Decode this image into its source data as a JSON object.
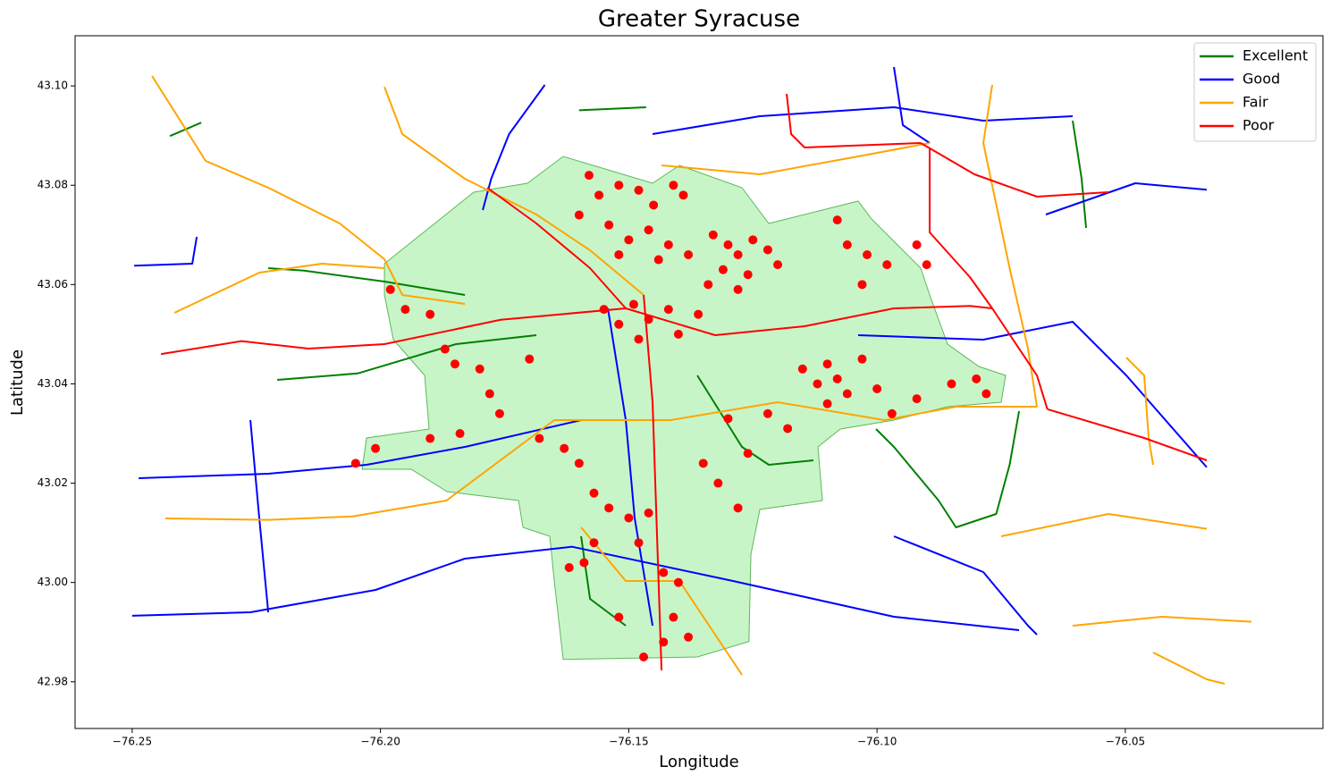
{
  "chart_data": {
    "type": "map",
    "title": "Greater Syracuse",
    "x_label": "Longitude",
    "y_label": "Latitude",
    "xlim": [
      -76.2615,
      -76.0102
    ],
    "ylim": [
      42.9706,
      43.1101
    ],
    "xticks": [
      {
        "value": -76.25,
        "label": "−76.25"
      },
      {
        "value": -76.2,
        "label": "−76.20"
      },
      {
        "value": -76.15,
        "label": "−76.15"
      },
      {
        "value": -76.1,
        "label": "−76.10"
      },
      {
        "value": -76.05,
        "label": "−76.05"
      }
    ],
    "yticks": [
      42.98,
      {
        "value": 43,
        "label": "43.00"
      },
      43.02,
      43.04,
      43.06,
      43.08,
      {
        "value": 43.1,
        "label": "43.10"
      }
    ],
    "legend": "upper right",
    "boundary": {
      "fill": "#c8f5c8",
      "edge": "#5cb85c",
      "x": [
        -76.1992,
        -76.1902,
        -76.1812,
        -76.1704,
        -76.1632,
        -76.1542,
        -76.1452,
        -76.1398,
        -76.1272,
        -76.1218,
        -76.1038,
        -76.1011,
        -76.0966,
        -76.0912,
        -76.0894,
        -76.0858,
        -76.0795,
        -76.0741,
        -76.075,
        -76.0858,
        -76.0966,
        -76.1074,
        -76.1119,
        -76.111,
        -76.1236,
        -76.1254,
        -76.1258,
        -76.1362,
        -76.1632,
        -76.165,
        -76.1659,
        -76.1713,
        -76.1722,
        -76.1866,
        -76.1938,
        -76.2037,
        -76.2028,
        -76.1902,
        -76.1911,
        -76.1974,
        -76.1992
      ],
      "y": [
        43.0642,
        43.0714,
        43.0786,
        43.0804,
        43.0858,
        43.0831,
        43.0804,
        43.084,
        43.0795,
        43.0723,
        43.0768,
        43.0732,
        43.0687,
        43.0633,
        43.0579,
        43.048,
        43.0435,
        43.0417,
        43.0363,
        43.0354,
        43.0327,
        43.0309,
        43.0273,
        43.0165,
        43.0147,
        43.0057,
        42.9881,
        42.985,
        42.9845,
        43.0003,
        43.0093,
        43.0111,
        43.0165,
        43.0183,
        43.0228,
        43.0228,
        43.0291,
        43.0309,
        43.0417,
        43.0489,
        43.0579
      ]
    },
    "series": [
      {
        "name": "Excellent",
        "color": "#008000",
        "lines": [
          {
            "x": [
              -76.2424,
              -76.2361
            ],
            "y": [
              43.0899,
              43.0926
            ]
          },
          {
            "x": [
              -76.2208,
              -76.2046,
              -76.1848,
              -76.1686
            ],
            "y": [
              43.0408,
              43.0421,
              43.048,
              43.0498
            ]
          },
          {
            "x": [
              -76.2226,
              -76.2154,
              -76.1992,
              -76.183
            ],
            "y": [
              43.0633,
              43.0628,
              43.0606,
              43.0579
            ]
          },
          {
            "x": [
              -76.16,
              -76.1465
            ],
            "y": [
              43.0951,
              43.0957
            ]
          },
          {
            "x": [
              -76.0606,
              -76.0588,
              -76.0579
            ],
            "y": [
              43.093,
              43.0813,
              43.0714
            ]
          },
          {
            "x": [
              -76.1002,
              -76.0966,
              -76.0876,
              -76.0841,
              -76.076,
              -76.0733,
              -76.0714
            ],
            "y": [
              43.0309,
              43.0273,
              43.0165,
              43.0111,
              43.0138,
              43.0237,
              43.0345
            ]
          },
          {
            "x": [
              -76.1362,
              -76.1272,
              -76.1218,
              -76.1128
            ],
            "y": [
              43.0417,
              43.0273,
              43.0237,
              43.0246
            ]
          },
          {
            "x": [
              -76.1596,
              -76.1578,
              -76.1506
            ],
            "y": [
              43.0093,
              42.9967,
              42.9913
            ]
          }
        ]
      },
      {
        "name": "Good",
        "color": "#0000ff",
        "lines": [
          {
            "x": [
              -76.25,
              -76.2262,
              -76.201,
              -76.183,
              -76.1614,
              -76.129,
              -76.0966,
              -76.0714
            ],
            "y": [
              42.9933,
              42.994,
              42.9985,
              43.0048,
              43.0072,
              43.0003,
              42.9931,
              42.9904
            ]
          },
          {
            "x": [
              -76.2496,
              -76.2379,
              -76.237
            ],
            "y": [
              43.0638,
              43.0642,
              43.0696
            ]
          },
          {
            "x": [
              -76.2487,
              -76.2226,
              -76.2028,
              -76.183,
              -76.1596
            ],
            "y": [
              43.021,
              43.0219,
              43.0237,
              43.0273,
              43.0327
            ]
          },
          {
            "x": [
              -76.1038,
              -76.0786,
              -76.0606,
              -76.0498,
              -76.0336
            ],
            "y": [
              43.0498,
              43.0489,
              43.0525,
              43.0417,
              43.0232
            ]
          },
          {
            "x": [
              -76.1452,
              -76.1236,
              -76.0966,
              -76.0786,
              -76.0606
            ],
            "y": [
              43.0903,
              43.0939,
              43.0957,
              43.093,
              43.0939
            ]
          },
          {
            "x": [
              -76.066,
              -76.048,
              -76.0336
            ],
            "y": [
              43.0741,
              43.0804,
              43.0791
            ]
          },
          {
            "x": [
              -76.1669,
              -76.1741,
              -76.1777,
              -76.1794
            ],
            "y": [
              43.1002,
              43.0903,
              43.0813,
              43.075
            ]
          },
          {
            "x": [
              -76.0966,
              -76.0948,
              -76.0894
            ],
            "y": [
              43.1038,
              43.0921,
              43.0885
            ]
          },
          {
            "x": [
              -76.0966,
              -76.0786,
              -76.0696,
              -76.0678
            ],
            "y": [
              43.0093,
              43.0021,
              42.9913,
              42.9895
            ]
          },
          {
            "x": [
              -76.2262,
              -76.2244,
              -76.2226
            ],
            "y": [
              43.0327,
              43.0129,
              42.994
            ]
          },
          {
            "x": [
              -76.1542,
              -76.1506,
              -76.1488,
              -76.1452
            ],
            "y": [
              43.0552,
              43.0327,
              43.0129,
              42.9913
            ]
          }
        ]
      },
      {
        "name": "Fair",
        "color": "#ffa500",
        "lines": [
          {
            "x": [
              -76.246,
              -76.2352,
              -76.2226,
              -76.2082,
              -76.1992,
              -76.1956,
              -76.183
            ],
            "y": [
              43.102,
              43.0849,
              43.0795,
              43.0723,
              43.0651,
              43.0579,
              43.0561
            ]
          },
          {
            "x": [
              -76.2433,
              -76.2226,
              -76.2056,
              -76.1867,
              -76.165,
              -76.1416,
              -76.12,
              -76.0985,
              -76.0841,
              -76.0678
            ],
            "y": [
              43.0129,
              43.0126,
              43.0133,
              43.0165,
              43.0327,
              43.0327,
              43.0363,
              43.0327,
              43.0354,
              43.0354
            ]
          },
          {
            "x": [
              -76.1992,
              -76.1956,
              -76.183,
              -76.1686,
              -76.1578,
              -76.147
            ],
            "y": [
              43.0998,
              43.0903,
              43.0813,
              43.0741,
              43.0669,
              43.0579
            ]
          },
          {
            "x": [
              -76.0768,
              -76.0786,
              -76.0733,
              -76.0696,
              -76.0678
            ],
            "y": [
              43.1002,
              43.0885,
              43.0633,
              43.0471,
              43.0354
            ]
          },
          {
            "x": [
              -76.0498,
              -76.0462,
              -76.0453,
              -76.0444
            ],
            "y": [
              43.0453,
              43.0417,
              43.0291,
              43.0237
            ]
          },
          {
            "x": [
              -76.075,
              -76.0534,
              -76.0336
            ],
            "y": [
              43.0093,
              43.0138,
              43.0108
            ]
          },
          {
            "x": [
              -76.0606,
              -76.0426,
              -76.0246
            ],
            "y": [
              42.9913,
              42.9931,
              42.9921
            ]
          },
          {
            "x": [
              -76.0444,
              -76.0336,
              -76.03
            ],
            "y": [
              42.9859,
              42.9805,
              42.9796
            ]
          },
          {
            "x": [
              -76.1596,
              -76.1506,
              -76.1398,
              -76.1272
            ],
            "y": [
              43.0111,
              43.0003,
              43.0003,
              42.9814
            ]
          },
          {
            "x": [
              -76.1434,
              -76.1236,
              -76.1038,
              -76.0894
            ],
            "y": [
              43.084,
              43.0822,
              43.0858,
              43.0885
            ]
          },
          {
            "x": [
              -76.2415,
              -76.2244,
              -76.2118,
              -76.1992
            ],
            "y": [
              43.0543,
              43.0624,
              43.0642,
              43.0633
            ]
          }
        ]
      },
      {
        "name": "Poor",
        "color": "#ff0000",
        "lines": [
          {
            "x": [
              -76.0894,
              -76.0894,
              -76.0813,
              -76.0768,
              -76.0678,
              -76.0657
            ],
            "y": [
              43.0876,
              43.0705,
              43.0615,
              43.0552,
              43.0417,
              43.0349
            ]
          },
          {
            "x": [
              -76.2442,
              -76.228,
              -76.2145,
              -76.1992,
              -76.1758,
              -76.1506,
              -76.1326,
              -76.1146,
              -76.0966,
              -76.0813,
              -76.0768
            ],
            "y": [
              43.046,
              43.0486,
              43.0471,
              43.048,
              43.0529,
              43.0552,
              43.0498,
              43.0516,
              43.0552,
              43.0557,
              43.0552
            ]
          },
          {
            "x": [
              -76.0657,
              -76.0462,
              -76.0336
            ],
            "y": [
              43.0349,
              43.0291,
              43.0246
            ]
          },
          {
            "x": [
              -76.1182,
              -76.1173,
              -76.1146,
              -76.0912
            ],
            "y": [
              43.0984,
              43.0903,
              43.0876,
              43.0885
            ]
          },
          {
            "x": [
              -76.0912,
              -76.0804,
              -76.0678,
              -76.0534
            ],
            "y": [
              43.0885,
              43.0822,
              43.0777,
              43.0786
            ]
          },
          {
            "x": [
              -76.147,
              -76.1452,
              -76.1443,
              -76.1434
            ],
            "y": [
              43.0579,
              43.0363,
              43.0093,
              42.9823
            ]
          },
          {
            "x": [
              -76.1785,
              -76.1686,
              -76.1578,
              -76.1506
            ],
            "y": [
              43.0795,
              43.0723,
              43.0633,
              43.0552
            ]
          }
        ]
      }
    ],
    "points": {
      "color": "#ff0000",
      "x": [
        -76.158,
        -76.156,
        -76.152,
        -76.148,
        -76.145,
        -76.141,
        -76.139,
        -76.16,
        -76.154,
        -76.15,
        -76.146,
        -76.142,
        -76.138,
        -76.144,
        -76.152,
        -76.133,
        -76.13,
        -76.128,
        -76.125,
        -76.122,
        -76.131,
        -76.126,
        -76.12,
        -76.128,
        -76.134,
        -76.108,
        -76.106,
        -76.102,
        -76.098,
        -76.103,
        -76.092,
        -76.09,
        -76.155,
        -76.152,
        -76.149,
        -76.146,
        -76.142,
        -76.148,
        -76.14,
        -76.136,
        -76.198,
        -76.195,
        -76.19,
        -76.187,
        -76.185,
        -76.18,
        -76.178,
        -76.176,
        -76.17,
        -76.184,
        -76.19,
        -76.201,
        -76.205,
        -76.115,
        -76.112,
        -76.11,
        -76.108,
        -76.106,
        -76.11,
        -76.103,
        -76.1,
        -76.097,
        -76.092,
        -76.085,
        -76.08,
        -76.078,
        -76.168,
        -76.163,
        -76.16,
        -76.157,
        -76.154,
        -76.15,
        -76.146,
        -76.148,
        -76.143,
        -76.14,
        -76.141,
        -76.143,
        -76.138,
        -76.147,
        -76.152,
        -76.159,
        -76.157,
        -76.162,
        -76.132,
        -76.128,
        -76.126,
        -76.13,
        -76.122,
        -76.118,
        -76.135
      ],
      "y": [
        43.082,
        43.078,
        43.08,
        43.079,
        43.076,
        43.08,
        43.078,
        43.074,
        43.072,
        43.069,
        43.071,
        43.068,
        43.066,
        43.065,
        43.066,
        43.07,
        43.068,
        43.066,
        43.069,
        43.067,
        43.063,
        43.062,
        43.064,
        43.059,
        43.06,
        43.073,
        43.068,
        43.066,
        43.064,
        43.06,
        43.068,
        43.064,
        43.055,
        43.052,
        43.056,
        43.053,
        43.055,
        43.049,
        43.05,
        43.054,
        43.059,
        43.055,
        43.054,
        43.047,
        43.044,
        43.043,
        43.038,
        43.034,
        43.045,
        43.03,
        43.029,
        43.027,
        43.024,
        43.043,
        43.04,
        43.044,
        43.041,
        43.038,
        43.036,
        43.045,
        43.039,
        43.034,
        43.037,
        43.04,
        43.041,
        43.038,
        43.029,
        43.027,
        43.024,
        43.018,
        43.015,
        43.013,
        43.014,
        43.008,
        43.002,
        43,
        42.993,
        42.988,
        42.989,
        42.985,
        42.993,
        43.004,
        43.008,
        43.003,
        43.02,
        43.015,
        43.026,
        43.033,
        43.034,
        43.031,
        43.024
      ]
    }
  }
}
